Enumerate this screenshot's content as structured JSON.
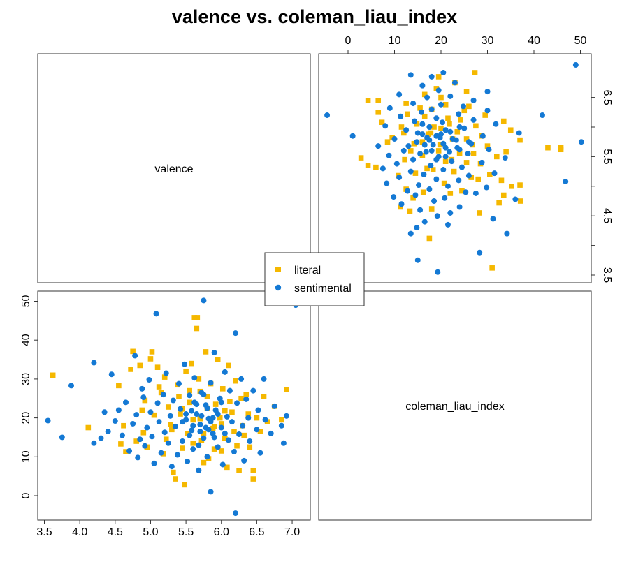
{
  "chart_data": {
    "type": "scatter",
    "title": "valence vs. coleman_liau_index",
    "variables": [
      "valence",
      "coleman_liau_index"
    ],
    "axes": {
      "valence": {
        "range": [
          3.5,
          7.1
        ],
        "ticks_top_left_panel_right_axis": [
          "3.5",
          "4.5",
          "5.5",
          "6.5"
        ],
        "ticks_bottom": [
          "3.5",
          "4.0",
          "4.5",
          "5.0",
          "5.5",
          "6.0",
          "6.5",
          "7.0"
        ]
      },
      "coleman_liau_index": {
        "range": [
          -5,
          51
        ],
        "ticks_top": [
          "0",
          "10",
          "20",
          "30",
          "40",
          "50"
        ],
        "ticks_left": [
          "0",
          "10",
          "20",
          "30",
          "40",
          "50"
        ]
      }
    },
    "legend": {
      "placement": "center",
      "entries": [
        "literal",
        "sentimental"
      ]
    },
    "colors": {
      "literal": "#f5b800",
      "sentimental": "#1479d4"
    },
    "markers": {
      "literal": "square",
      "sentimental": "circle"
    },
    "series": [
      {
        "name": "literal",
        "points": [
          [
            3.62,
            31.0
          ],
          [
            4.12,
            17.5
          ],
          [
            4.55,
            28.3
          ],
          [
            4.58,
            13.3
          ],
          [
            4.62,
            18.0
          ],
          [
            4.65,
            11.3
          ],
          [
            4.72,
            32.5
          ],
          [
            4.75,
            37.1
          ],
          [
            4.8,
            14.0
          ],
          [
            4.85,
            33.5
          ],
          [
            4.88,
            22.0
          ],
          [
            4.9,
            16.2
          ],
          [
            4.92,
            24.5
          ],
          [
            4.95,
            12.5
          ],
          [
            5.0,
            35.2
          ],
          [
            5.02,
            37.0
          ],
          [
            5.05,
            20.7
          ],
          [
            5.1,
            33.0
          ],
          [
            5.12,
            28.0
          ],
          [
            5.15,
            26.5
          ],
          [
            5.18,
            10.8
          ],
          [
            5.2,
            30.5
          ],
          [
            5.22,
            14.5
          ],
          [
            5.25,
            22.8
          ],
          [
            5.28,
            18.3
          ],
          [
            5.3,
            17.0
          ],
          [
            5.32,
            6.0
          ],
          [
            5.35,
            4.3
          ],
          [
            5.38,
            28.5
          ],
          [
            5.4,
            25.5
          ],
          [
            5.42,
            21.0
          ],
          [
            5.45,
            12.2
          ],
          [
            5.48,
            2.8
          ],
          [
            5.5,
            32.0
          ],
          [
            5.52,
            16.0
          ],
          [
            5.55,
            24.0
          ],
          [
            5.58,
            34.0
          ],
          [
            5.6,
            19.5
          ],
          [
            5.62,
            45.8
          ],
          [
            5.65,
            43.0
          ],
          [
            5.66,
            45.8
          ],
          [
            5.68,
            30.0
          ],
          [
            5.7,
            26.8
          ],
          [
            5.72,
            14.2
          ],
          [
            5.75,
            8.5
          ],
          [
            5.78,
            37.0
          ],
          [
            5.8,
            22.5
          ],
          [
            5.82,
            9.5
          ],
          [
            5.85,
            28.8
          ],
          [
            5.88,
            17.3
          ],
          [
            5.9,
            12.0
          ],
          [
            5.92,
            23.5
          ],
          [
            5.95,
            35.0
          ],
          [
            5.98,
            20.0
          ],
          [
            6.0,
            18.5
          ],
          [
            6.02,
            27.5
          ],
          [
            6.05,
            14.8
          ],
          [
            6.08,
            7.3
          ],
          [
            6.1,
            33.5
          ],
          [
            6.12,
            24.2
          ],
          [
            6.15,
            21.5
          ],
          [
            6.18,
            16.5
          ],
          [
            6.2,
            29.5
          ],
          [
            6.22,
            12.8
          ],
          [
            6.25,
            6.5
          ],
          [
            6.28,
            25.0
          ],
          [
            6.3,
            18.0
          ],
          [
            6.32,
            15.5
          ],
          [
            6.35,
            26.0
          ],
          [
            6.38,
            21.0
          ],
          [
            6.4,
            12.5
          ],
          [
            6.45,
            6.5
          ],
          [
            6.45,
            4.3
          ],
          [
            6.5,
            20.0
          ],
          [
            6.55,
            16.5
          ],
          [
            6.6,
            25.5
          ],
          [
            6.65,
            19.0
          ],
          [
            6.75,
            23.0
          ],
          [
            6.85,
            19.5
          ],
          [
            6.92,
            27.3
          ],
          [
            5.55,
            27.0
          ],
          [
            5.7,
            19.8
          ],
          [
            5.8,
            25.5
          ],
          [
            6.05,
            21.8
          ],
          [
            5.6,
            13.5
          ],
          [
            5.9,
            17.8
          ],
          [
            5.45,
            22.3
          ],
          [
            5.75,
            16.0
          ],
          [
            6.0,
            11.5
          ]
        ]
      },
      {
        "name": "sentimental",
        "points": [
          [
            3.55,
            19.3
          ],
          [
            3.75,
            15.0
          ],
          [
            3.88,
            28.3
          ],
          [
            4.2,
            13.5
          ],
          [
            4.2,
            34.2
          ],
          [
            4.3,
            14.8
          ],
          [
            4.35,
            21.5
          ],
          [
            4.4,
            16.5
          ],
          [
            4.45,
            31.2
          ],
          [
            4.5,
            19.2
          ],
          [
            4.55,
            22.0
          ],
          [
            4.6,
            15.5
          ],
          [
            4.65,
            24.0
          ],
          [
            4.7,
            11.5
          ],
          [
            4.75,
            18.5
          ],
          [
            4.78,
            36.0
          ],
          [
            4.8,
            20.8
          ],
          [
            4.82,
            9.8
          ],
          [
            4.85,
            14.5
          ],
          [
            4.88,
            27.5
          ],
          [
            4.9,
            25.3
          ],
          [
            4.92,
            12.8
          ],
          [
            4.95,
            17.5
          ],
          [
            4.98,
            29.8
          ],
          [
            5.0,
            21.5
          ],
          [
            5.02,
            15.2
          ],
          [
            5.05,
            8.3
          ],
          [
            5.08,
            46.8
          ],
          [
            5.1,
            23.8
          ],
          [
            5.12,
            19.0
          ],
          [
            5.15,
            11.0
          ],
          [
            5.18,
            26.0
          ],
          [
            5.2,
            16.3
          ],
          [
            5.22,
            31.5
          ],
          [
            5.25,
            13.5
          ],
          [
            5.28,
            20.5
          ],
          [
            5.3,
            7.5
          ],
          [
            5.32,
            24.5
          ],
          [
            5.35,
            17.8
          ],
          [
            5.38,
            10.5
          ],
          [
            5.4,
            28.8
          ],
          [
            5.42,
            22.3
          ],
          [
            5.45,
            14.0
          ],
          [
            5.48,
            33.8
          ],
          [
            5.5,
            19.5
          ],
          [
            5.52,
            8.8
          ],
          [
            5.55,
            25.8
          ],
          [
            5.58,
            16.8
          ],
          [
            5.6,
            12.0
          ],
          [
            5.62,
            30.3
          ],
          [
            5.65,
            21.0
          ],
          [
            5.68,
            6.5
          ],
          [
            5.7,
            18.3
          ],
          [
            5.72,
            26.5
          ],
          [
            5.75,
            50.2
          ],
          [
            5.75,
            14.8
          ],
          [
            5.78,
            23.3
          ],
          [
            5.8,
            10.0
          ],
          [
            5.82,
            19.8
          ],
          [
            5.85,
            1.0
          ],
          [
            5.85,
            29.0
          ],
          [
            5.88,
            16.0
          ],
          [
            5.9,
            36.8
          ],
          [
            5.92,
            22.0
          ],
          [
            5.95,
            12.5
          ],
          [
            5.98,
            25.0
          ],
          [
            6.0,
            17.5
          ],
          [
            6.02,
            8.0
          ],
          [
            6.05,
            31.8
          ],
          [
            6.08,
            20.3
          ],
          [
            6.1,
            14.3
          ],
          [
            6.12,
            27.0
          ],
          [
            6.15,
            19.0
          ],
          [
            6.18,
            11.3
          ],
          [
            6.2,
            -4.5
          ],
          [
            6.2,
            41.8
          ],
          [
            6.22,
            23.8
          ],
          [
            6.25,
            15.8
          ],
          [
            6.28,
            30.0
          ],
          [
            6.3,
            18.0
          ],
          [
            6.32,
            9.0
          ],
          [
            6.35,
            24.8
          ],
          [
            6.38,
            20.0
          ],
          [
            6.4,
            14.0
          ],
          [
            6.45,
            27.0
          ],
          [
            6.5,
            17.0
          ],
          [
            6.52,
            22.0
          ],
          [
            6.55,
            11.0
          ],
          [
            6.6,
            30.0
          ],
          [
            6.62,
            19.5
          ],
          [
            6.7,
            16.0
          ],
          [
            6.75,
            23.0
          ],
          [
            6.85,
            18.0
          ],
          [
            6.88,
            13.5
          ],
          [
            6.92,
            20.5
          ],
          [
            7.05,
            49.0
          ],
          [
            5.5,
            21.0
          ],
          [
            5.6,
            18.0
          ],
          [
            5.65,
            23.5
          ],
          [
            5.7,
            16.5
          ],
          [
            5.72,
            20.5
          ],
          [
            5.78,
            17.5
          ],
          [
            5.8,
            22.5
          ],
          [
            5.85,
            19.0
          ],
          [
            5.9,
            15.0
          ],
          [
            5.95,
            21.0
          ],
          [
            5.55,
            15.5
          ],
          [
            5.62,
            24.0
          ],
          [
            5.68,
            13.0
          ],
          [
            5.75,
            26.0
          ],
          [
            5.88,
            20.0
          ],
          [
            6.0,
            24.0
          ],
          [
            6.05,
            16.0
          ],
          [
            5.45,
            19.0
          ],
          [
            5.58,
            21.8
          ],
          [
            5.82,
            17.0
          ]
        ]
      }
    ]
  }
}
